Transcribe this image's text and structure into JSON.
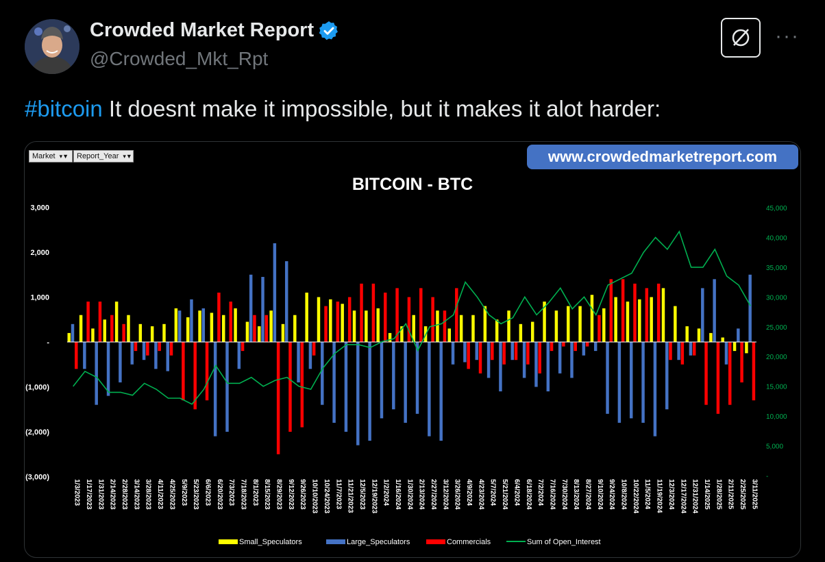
{
  "author": {
    "name": "Crowded Market Report",
    "handle": "@Crowded_Mkt_Rpt"
  },
  "tweet": {
    "hashtag": "#bitcoin",
    "text": " It doesnt make it impossible, but it makes it alot harder:"
  },
  "colors": {
    "small": "#ffff00",
    "large": "#4472c4",
    "commercials": "#ff0000",
    "oi": "#00b050",
    "hashtag": "#1d9bf0",
    "verified": "#1d9bf0"
  },
  "chart_data": {
    "type": "bar",
    "title": "BITCOIN - BTC",
    "watermark": "www.crowdedmarketreport.com",
    "filters": [
      "Market",
      "Report_Year"
    ],
    "left_axis": {
      "range": [
        -3000,
        3000
      ],
      "ticks": [
        "3,000",
        "2,000",
        "1,000",
        "-",
        "(1,000)",
        "(2,000)",
        "(3,000)"
      ]
    },
    "right_axis": {
      "range": [
        0,
        45000
      ],
      "ticks": [
        "45,000",
        "40,000",
        "35,000",
        "30,000",
        "25,000",
        "20,000",
        "15,000",
        "10,000",
        "5,000",
        "-"
      ]
    },
    "legend": [
      "Small_Speculators",
      "Large_Speculators",
      "Commercials",
      "Sum of Open_Interest"
    ],
    "x_labels": [
      "1/3/2023",
      "1/17/2023",
      "1/31/2023",
      "2/14/2023",
      "2/28/2023",
      "3/14/2023",
      "3/28/2023",
      "4/11/2023",
      "4/25/2023",
      "5/9/2023",
      "5/23/2023",
      "6/6/2023",
      "6/20/2023",
      "7/3/2023",
      "7/18/2023",
      "8/1/2023",
      "8/15/2023",
      "8/29/2023",
      "9/12/2023",
      "9/26/2023",
      "10/10/2023",
      "10/24/2023",
      "11/7/2023",
      "11/21/2023",
      "12/5/2023",
      "12/19/2023",
      "1/2/2024",
      "1/16/2024",
      "1/30/2024",
      "2/13/2024",
      "2/27/2024",
      "3/12/2024",
      "3/26/2024",
      "4/9/2024",
      "4/23/2024",
      "5/7/2024",
      "5/21/2024",
      "6/4/2024",
      "6/18/2024",
      "7/2/2024",
      "7/16/2024",
      "7/30/2024",
      "8/13/2024",
      "8/27/2024",
      "9/10/2024",
      "9/24/2024",
      "10/8/2024",
      "10/22/2024",
      "11/5/2024",
      "11/19/2024",
      "12/3/2024",
      "12/17/2024",
      "12/31/2024",
      "1/14/2025",
      "1/28/2025",
      "2/11/2025",
      "2/25/2025",
      "3/11/2025"
    ],
    "series": [
      {
        "name": "Small_Speculators",
        "values": [
          200,
          600,
          300,
          500,
          900,
          600,
          400,
          350,
          400,
          750,
          550,
          700,
          650,
          600,
          750,
          450,
          350,
          700,
          400,
          600,
          1100,
          1000,
          950,
          850,
          700,
          700,
          750,
          200,
          350,
          600,
          350,
          700,
          300,
          600,
          600,
          800,
          500,
          700,
          400,
          450,
          900,
          700,
          800,
          800,
          1050,
          750,
          1000,
          900,
          950,
          1000,
          1200,
          800,
          350,
          300,
          200,
          100,
          -200,
          -250
        ]
      },
      {
        "name": "Large_Speculators",
        "values": [
          400,
          -600,
          -1400,
          -1200,
          -900,
          -500,
          -400,
          -600,
          -650,
          700,
          950,
          750,
          -2100,
          -2000,
          -600,
          1500,
          1450,
          2200,
          1800,
          -900,
          -600,
          -1400,
          -1800,
          -2000,
          -2300,
          -2200,
          -1700,
          -1500,
          -1800,
          -1600,
          -2100,
          -2200,
          -500,
          -450,
          -400,
          -800,
          -1100,
          -400,
          -800,
          -1000,
          -1100,
          -700,
          -800,
          -300,
          -200,
          -1600,
          -1800,
          -1700,
          -1800,
          -2100,
          -1500,
          -400,
          -300,
          1200,
          1400,
          -500,
          300,
          1500
        ]
      },
      {
        "name": "Commercials",
        "values": [
          -600,
          900,
          900,
          600,
          400,
          -200,
          -300,
          -200,
          -300,
          -1300,
          -1500,
          -1300,
          1100,
          900,
          -200,
          600,
          600,
          -2500,
          -2000,
          -1900,
          -300,
          800,
          900,
          1000,
          1300,
          1300,
          1100,
          1200,
          1000,
          1200,
          1000,
          700,
          1200,
          -600,
          -700,
          -400,
          -500,
          -400,
          -500,
          -700,
          -200,
          -100,
          -200,
          -100,
          600,
          1400,
          1400,
          1300,
          1200,
          1300,
          -400,
          -500,
          -300,
          -1400,
          -1600,
          -1400,
          -900,
          -1300
        ]
      },
      {
        "name": "Sum of Open_Interest",
        "values": [
          15000,
          17500,
          16500,
          14000,
          14000,
          13500,
          15500,
          14500,
          13000,
          13000,
          12000,
          14500,
          18500,
          15500,
          15500,
          16500,
          15000,
          16000,
          16500,
          15000,
          14500,
          18000,
          20500,
          22000,
          22000,
          21500,
          22500,
          23000,
          25500,
          21000,
          25000,
          25500,
          27000,
          32500,
          30000,
          27000,
          25500,
          26500,
          30000,
          27000,
          29000,
          31500,
          28000,
          30000,
          27000,
          32000,
          33000,
          34000,
          37500,
          40000,
          38000,
          41000,
          35000,
          35000,
          38000,
          33500,
          32000,
          28500
        ]
      }
    ]
  }
}
